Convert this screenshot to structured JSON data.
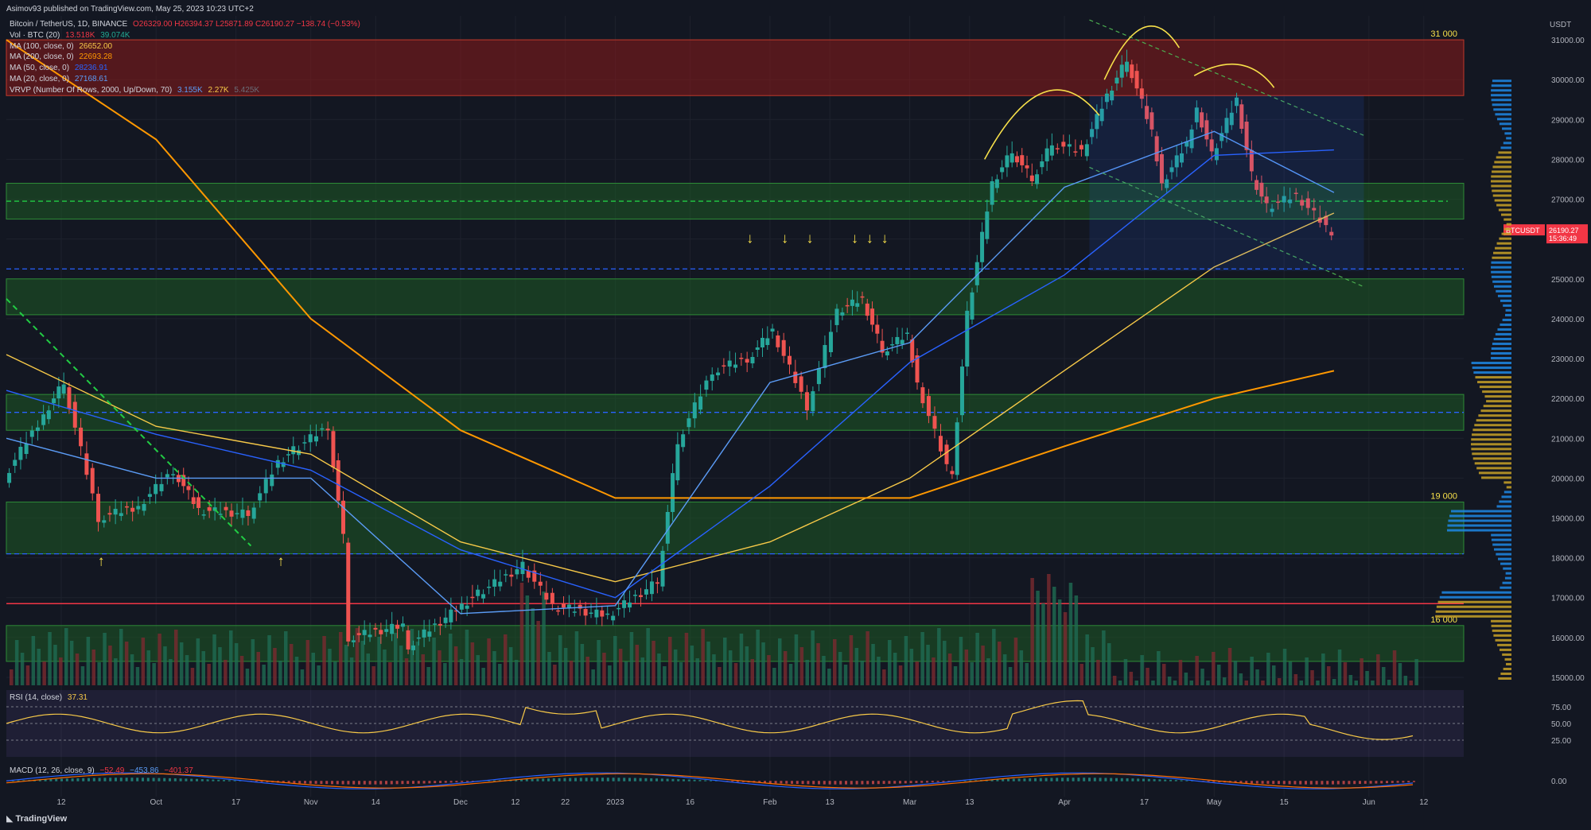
{
  "header": {
    "published": "Asimov93 published on TradingView.com, May 25, 2023 10:23 UTC+2"
  },
  "legend": {
    "title": "Bitcoin / TetherUS, 1D, BINANCE",
    "ohlc": "O26329.00 H26394.37 L25871.89 C26190.27 −138.74 (−0.53%)",
    "vol_label": "Vol · BTC (20)",
    "vol_v1": "13.518K",
    "vol_v2": "39.074K",
    "ma100_label": "MA (100, close, 0)",
    "ma100_val": "26652.00",
    "ma200_label": "MA (200, close, 0)",
    "ma200_val": "22693.28",
    "ma50_label": "MA (50, close, 0)",
    "ma50_val": "28236.91",
    "ma20_label": "MA (20, close, 0)",
    "ma20_val": "27168.61",
    "vrvp_label": "VRVP (Number Of Rows, 2000, Up/Down, 70)",
    "vrvp_v1": "3.155K",
    "vrvp_v2": "2.27K",
    "vrvp_v3": "5.425K"
  },
  "rsi": {
    "label": "RSI (14, close)",
    "value": "37.31"
  },
  "macd": {
    "label": "MACD (12, 26, close, 9)",
    "v1": "−52.49",
    "v2": "−453.86",
    "v3": "−401.37"
  },
  "footer": {
    "brand": "TradingView"
  },
  "price_axis": {
    "currency": "USDT",
    "current_symbol": "BTCUSDT",
    "current_price": "26190.27",
    "countdown": "15:36:49"
  },
  "zone_labels": [
    "31 000",
    "19 000",
    "16 000"
  ],
  "chart_data": {
    "type": "candlestick",
    "symbol": "BTCUSDT",
    "y_range": [
      14800,
      31600
    ],
    "y_ticks": [
      15000,
      16000,
      17000,
      18000,
      19000,
      20000,
      21000,
      22000,
      23000,
      24000,
      25000,
      26000,
      27000,
      28000,
      29000,
      30000,
      31000
    ],
    "x_ticks": [
      {
        "label": "12",
        "date": "2022-09-12"
      },
      {
        "label": "Oct",
        "date": "2022-10-01"
      },
      {
        "label": "17",
        "date": "2022-10-17"
      },
      {
        "label": "Nov",
        "date": "2022-11-01"
      },
      {
        "label": "14",
        "date": "2022-11-14"
      },
      {
        "label": "Dec",
        "date": "2022-12-01"
      },
      {
        "label": "12",
        "date": "2022-12-12"
      },
      {
        "label": "22",
        "date": "2022-12-22"
      },
      {
        "label": "2023",
        "date": "2023-01-01"
      },
      {
        "label": "16",
        "date": "2023-01-16"
      },
      {
        "label": "Feb",
        "date": "2023-02-01"
      },
      {
        "label": "13",
        "date": "2023-02-13"
      },
      {
        "label": "Mar",
        "date": "2023-03-01"
      },
      {
        "label": "13",
        "date": "2023-03-13"
      },
      {
        "label": "Apr",
        "date": "2023-04-01"
      },
      {
        "label": "17",
        "date": "2023-04-17"
      },
      {
        "label": "May",
        "date": "2023-05-01"
      },
      {
        "label": "15",
        "date": "2023-05-15"
      },
      {
        "label": "Jun",
        "date": "2023-06-01"
      },
      {
        "label": "12",
        "date": "2023-06-12"
      }
    ],
    "x_range": [
      "2022-09-01",
      "2023-06-20"
    ],
    "key_points": [
      {
        "date": "2022-09-01",
        "close": 20000
      },
      {
        "date": "2022-09-09",
        "close": 21600
      },
      {
        "date": "2022-09-13",
        "close": 22400
      },
      {
        "date": "2022-09-20",
        "close": 19000
      },
      {
        "date": "2022-09-28",
        "close": 19300
      },
      {
        "date": "2022-10-05",
        "close": 20200
      },
      {
        "date": "2022-10-10",
        "close": 19200
      },
      {
        "date": "2022-10-20",
        "close": 19100
      },
      {
        "date": "2022-10-26",
        "close": 20400
      },
      {
        "date": "2022-10-29",
        "close": 20700
      },
      {
        "date": "2022-11-05",
        "close": 21300
      },
      {
        "date": "2022-11-08",
        "close": 18500
      },
      {
        "date": "2022-11-09",
        "close": 16000
      },
      {
        "date": "2022-11-20",
        "close": 16300
      },
      {
        "date": "2022-11-21",
        "close": 15800
      },
      {
        "date": "2022-12-05",
        "close": 17100
      },
      {
        "date": "2022-12-14",
        "close": 17800
      },
      {
        "date": "2022-12-20",
        "close": 16800
      },
      {
        "date": "2022-12-31",
        "close": 16550
      },
      {
        "date": "2023-01-10",
        "close": 17400
      },
      {
        "date": "2023-01-14",
        "close": 20900
      },
      {
        "date": "2023-01-21",
        "close": 22700
      },
      {
        "date": "2023-01-28",
        "close": 23000
      },
      {
        "date": "2023-02-02",
        "close": 23700
      },
      {
        "date": "2023-02-09",
        "close": 21800
      },
      {
        "date": "2023-02-15",
        "close": 24200
      },
      {
        "date": "2023-02-20",
        "close": 24500
      },
      {
        "date": "2023-02-24",
        "close": 23200
      },
      {
        "date": "2023-03-01",
        "close": 23600
      },
      {
        "date": "2023-03-03",
        "close": 22400
      },
      {
        "date": "2023-03-09",
        "close": 20300
      },
      {
        "date": "2023-03-10",
        "close": 20200
      },
      {
        "date": "2023-03-13",
        "close": 24100
      },
      {
        "date": "2023-03-18",
        "close": 27400
      },
      {
        "date": "2023-03-22",
        "close": 28200
      },
      {
        "date": "2023-03-26",
        "close": 27500
      },
      {
        "date": "2023-03-30",
        "close": 28400
      },
      {
        "date": "2023-04-05",
        "close": 28200
      },
      {
        "date": "2023-04-10",
        "close": 29600
      },
      {
        "date": "2023-04-14",
        "close": 30500
      },
      {
        "date": "2023-04-19",
        "close": 28700
      },
      {
        "date": "2023-04-21",
        "close": 27400
      },
      {
        "date": "2023-04-26",
        "close": 28400
      },
      {
        "date": "2023-04-28",
        "close": 29300
      },
      {
        "date": "2023-05-01",
        "close": 28100
      },
      {
        "date": "2023-05-06",
        "close": 29500
      },
      {
        "date": "2023-05-09",
        "close": 27600
      },
      {
        "date": "2023-05-12",
        "close": 26800
      },
      {
        "date": "2023-05-18",
        "close": 27100
      },
      {
        "date": "2023-05-24",
        "close": 26300
      },
      {
        "date": "2023-05-25",
        "close": 26190.27
      }
    ],
    "ma_lines": [
      {
        "name": "MA (100, close, 0)",
        "color": "#f7c948",
        "points": [
          [
            "2022-09-01",
            23100
          ],
          [
            "2022-10-01",
            21300
          ],
          [
            "2022-11-01",
            20600
          ],
          [
            "2022-12-01",
            18400
          ],
          [
            "2023-01-01",
            17400
          ],
          [
            "2023-02-01",
            18400
          ],
          [
            "2023-03-01",
            20000
          ],
          [
            "2023-04-01",
            22700
          ],
          [
            "2023-05-01",
            25300
          ],
          [
            "2023-05-25",
            26652
          ]
        ]
      },
      {
        "name": "MA (200, close, 0)",
        "color": "#ff9800",
        "points": [
          [
            "2022-09-01",
            31000
          ],
          [
            "2022-10-01",
            28500
          ],
          [
            "2022-11-01",
            24000
          ],
          [
            "2022-12-01",
            21200
          ],
          [
            "2023-01-01",
            19500
          ],
          [
            "2023-02-01",
            19500
          ],
          [
            "2023-03-01",
            19500
          ],
          [
            "2023-04-01",
            20800
          ],
          [
            "2023-05-01",
            22000
          ],
          [
            "2023-05-25",
            22693
          ]
        ]
      },
      {
        "name": "MA (50, close, 0)",
        "color": "#2962ff",
        "points": [
          [
            "2022-09-01",
            22200
          ],
          [
            "2022-10-01",
            21100
          ],
          [
            "2022-11-01",
            20200
          ],
          [
            "2022-12-01",
            18200
          ],
          [
            "2023-01-01",
            17000
          ],
          [
            "2023-02-01",
            19800
          ],
          [
            "2023-03-01",
            22900
          ],
          [
            "2023-04-01",
            25100
          ],
          [
            "2023-05-01",
            28100
          ],
          [
            "2023-05-25",
            28237
          ]
        ]
      },
      {
        "name": "MA (20, close, 0)",
        "color": "#5b9cf6",
        "points": [
          [
            "2022-09-01",
            21000
          ],
          [
            "2022-10-01",
            20000
          ],
          [
            "2022-11-01",
            20000
          ],
          [
            "2022-12-01",
            16600
          ],
          [
            "2023-01-01",
            16800
          ],
          [
            "2023-02-01",
            22400
          ],
          [
            "2023-03-01",
            23400
          ],
          [
            "2023-04-01",
            27300
          ],
          [
            "2023-05-01",
            28700
          ],
          [
            "2023-05-25",
            27169
          ]
        ]
      }
    ],
    "zones": [
      {
        "low": 29600,
        "high": 31000,
        "color": "#8b1a1a"
      },
      {
        "low": 26500,
        "high": 27400,
        "color": "#1e5a25"
      },
      {
        "low": 24100,
        "high": 25000,
        "color": "#1e5a25"
      },
      {
        "low": 21200,
        "high": 22100,
        "color": "#1e5a25"
      },
      {
        "low": 18100,
        "high": 19400,
        "color": "#1e5a25"
      },
      {
        "low": 15400,
        "high": 16300,
        "color": "#1e5a25"
      }
    ],
    "levels": [
      {
        "price": 25250,
        "color": "#2962ff",
        "style": "dashed"
      },
      {
        "price": 18100,
        "color": "#2962ff",
        "style": "dashed"
      },
      {
        "price": 16850,
        "color": "#f23645",
        "style": "solid"
      },
      {
        "price": 21650,
        "color": "#2962ff",
        "style": "dashed"
      },
      {
        "price": 26950,
        "color": "#22cc44",
        "style": "dashed"
      }
    ],
    "rsi": {
      "range": [
        0,
        100
      ],
      "ticks": [
        25,
        50,
        75
      ],
      "last": 37.31
    },
    "macd": {
      "ticks": [
        0
      ]
    }
  }
}
